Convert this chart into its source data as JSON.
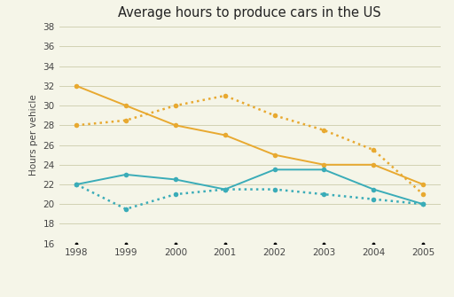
{
  "title": "Average hours to produce cars in the US",
  "ylabel": "Hours per vehicle",
  "years": [
    1998,
    1999,
    2000,
    2001,
    2002,
    2003,
    2004,
    2005
  ],
  "general_motor": [
    32,
    30,
    28,
    27,
    25,
    24,
    24,
    22
  ],
  "ford": [
    28,
    28.5,
    30,
    31,
    29,
    27.5,
    25.5,
    21
  ],
  "toyota": [
    22,
    23,
    22.5,
    21.5,
    23.5,
    23.5,
    21.5,
    20
  ],
  "honda": [
    22,
    19.5,
    21,
    21.5,
    21.5,
    21,
    20.5,
    20
  ],
  "gm_color": "#E8A930",
  "ford_color": "#E8A930",
  "toyota_color": "#3AACB8",
  "honda_color": "#3AACB8",
  "ylim": [
    16,
    38
  ],
  "yticks": [
    16,
    18,
    20,
    22,
    24,
    26,
    28,
    30,
    32,
    34,
    36,
    38
  ],
  "bg_color": "#F5F5E8",
  "grid_color": "#CCCCAA"
}
